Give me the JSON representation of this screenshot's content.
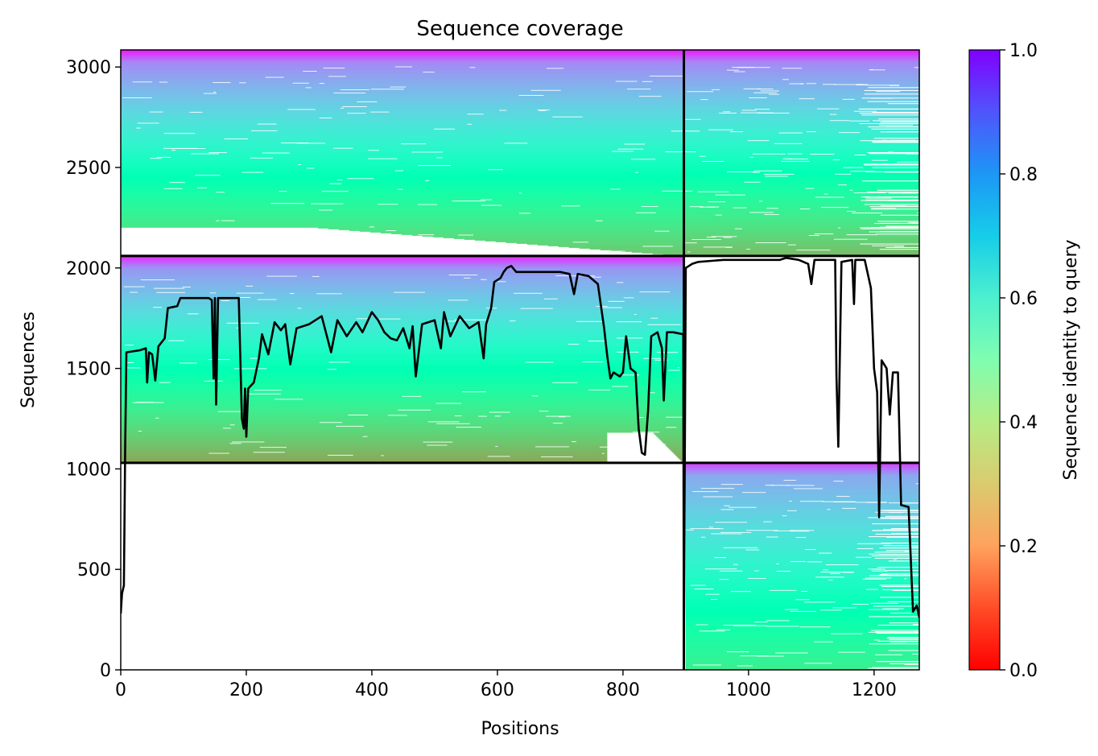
{
  "chart_data": {
    "type": "heatmap",
    "title": "Sequence coverage",
    "xlabel": "Positions",
    "ylabel": "Sequences",
    "colorbar_label": "Sequence identity to query",
    "colormap": "rainbow",
    "xlim": [
      0,
      1272
    ],
    "ylim": [
      0,
      3085
    ],
    "clim": [
      0,
      1
    ],
    "x_ticks": [
      0,
      200,
      400,
      600,
      800,
      1000,
      1200
    ],
    "y_ticks": [
      0,
      500,
      1000,
      1500,
      2000,
      2500,
      3000
    ],
    "colorbar_ticks": [
      0.0,
      0.2,
      0.4,
      0.6,
      0.8,
      1.0
    ],
    "colorbar_tick_labels": [
      "0.0",
      "0.2",
      "0.4",
      "0.6",
      "0.8",
      "1.0"
    ],
    "divider_x": [
      897
    ],
    "divider_y": [
      1030,
      2060
    ],
    "blocks": [
      {
        "name": "upper-left",
        "x": [
          0,
          897
        ],
        "y": [
          2060,
          3085
        ],
        "identity_top": 0.97,
        "identity_bottom": 0.28
      },
      {
        "name": "upper-right",
        "x": [
          897,
          1272
        ],
        "y": [
          2060,
          3085
        ],
        "identity_top": 0.97,
        "identity_bottom": 0.26
      },
      {
        "name": "middle-left",
        "x": [
          0,
          897
        ],
        "y": [
          1030,
          2060
        ],
        "identity_top": 0.95,
        "identity_bottom": 0.22
      },
      {
        "name": "lower-right",
        "x": [
          900,
          1272
        ],
        "y": [
          0,
          1030
        ],
        "identity_top": 0.92,
        "identity_bottom": 0.38
      }
    ],
    "coverage_line": {
      "color": "#000000",
      "points": [
        [
          0,
          280
        ],
        [
          2,
          380
        ],
        [
          5,
          420
        ],
        [
          7,
          1100
        ],
        [
          9,
          1580
        ],
        [
          30,
          1590
        ],
        [
          40,
          1600
        ],
        [
          42,
          1430
        ],
        [
          45,
          1580
        ],
        [
          50,
          1570
        ],
        [
          55,
          1440
        ],
        [
          60,
          1610
        ],
        [
          70,
          1650
        ],
        [
          75,
          1800
        ],
        [
          90,
          1810
        ],
        [
          95,
          1850
        ],
        [
          140,
          1850
        ],
        [
          145,
          1840
        ],
        [
          148,
          1450
        ],
        [
          150,
          1850
        ],
        [
          152,
          1320
        ],
        [
          155,
          1850
        ],
        [
          188,
          1850
        ],
        [
          193,
          1250
        ],
        [
          196,
          1200
        ],
        [
          198,
          1400
        ],
        [
          200,
          1160
        ],
        [
          203,
          1400
        ],
        [
          212,
          1430
        ],
        [
          220,
          1550
        ],
        [
          225,
          1670
        ],
        [
          235,
          1570
        ],
        [
          245,
          1730
        ],
        [
          255,
          1690
        ],
        [
          262,
          1720
        ],
        [
          270,
          1520
        ],
        [
          280,
          1700
        ],
        [
          300,
          1720
        ],
        [
          320,
          1760
        ],
        [
          335,
          1580
        ],
        [
          345,
          1740
        ],
        [
          360,
          1660
        ],
        [
          375,
          1730
        ],
        [
          385,
          1680
        ],
        [
          400,
          1780
        ],
        [
          410,
          1740
        ],
        [
          420,
          1680
        ],
        [
          430,
          1650
        ],
        [
          440,
          1640
        ],
        [
          450,
          1700
        ],
        [
          460,
          1600
        ],
        [
          465,
          1710
        ],
        [
          470,
          1460
        ],
        [
          480,
          1720
        ],
        [
          500,
          1740
        ],
        [
          510,
          1600
        ],
        [
          515,
          1780
        ],
        [
          525,
          1660
        ],
        [
          540,
          1760
        ],
        [
          555,
          1700
        ],
        [
          570,
          1730
        ],
        [
          578,
          1550
        ],
        [
          582,
          1720
        ],
        [
          590,
          1800
        ],
        [
          595,
          1930
        ],
        [
          605,
          1950
        ],
        [
          610,
          1980
        ],
        [
          615,
          2000
        ],
        [
          622,
          2010
        ],
        [
          630,
          1980
        ],
        [
          700,
          1980
        ],
        [
          715,
          1970
        ],
        [
          722,
          1870
        ],
        [
          728,
          1970
        ],
        [
          745,
          1960
        ],
        [
          760,
          1920
        ],
        [
          770,
          1700
        ],
        [
          775,
          1560
        ],
        [
          780,
          1450
        ],
        [
          785,
          1480
        ],
        [
          795,
          1460
        ],
        [
          800,
          1480
        ],
        [
          805,
          1660
        ],
        [
          812,
          1500
        ],
        [
          820,
          1480
        ],
        [
          825,
          1200
        ],
        [
          830,
          1080
        ],
        [
          835,
          1070
        ],
        [
          840,
          1290
        ],
        [
          845,
          1660
        ],
        [
          855,
          1680
        ],
        [
          862,
          1600
        ],
        [
          865,
          1340
        ],
        [
          870,
          1680
        ],
        [
          880,
          1680
        ],
        [
          896,
          1670
        ],
        [
          897,
          80
        ],
        [
          900,
          2000
        ],
        [
          910,
          2020
        ],
        [
          920,
          2030
        ],
        [
          960,
          2040
        ],
        [
          1050,
          2040
        ],
        [
          1060,
          2050
        ],
        [
          1080,
          2040
        ],
        [
          1095,
          2020
        ],
        [
          1100,
          1920
        ],
        [
          1105,
          2040
        ],
        [
          1138,
          2040
        ],
        [
          1140,
          1460
        ],
        [
          1143,
          1110
        ],
        [
          1148,
          2030
        ],
        [
          1165,
          2040
        ],
        [
          1168,
          1820
        ],
        [
          1170,
          2040
        ],
        [
          1185,
          2040
        ],
        [
          1195,
          1900
        ],
        [
          1200,
          1500
        ],
        [
          1205,
          1380
        ],
        [
          1208,
          760
        ],
        [
          1212,
          1540
        ],
        [
          1220,
          1500
        ],
        [
          1225,
          1270
        ],
        [
          1230,
          1480
        ],
        [
          1238,
          1480
        ],
        [
          1243,
          820
        ],
        [
          1255,
          810
        ],
        [
          1262,
          290
        ],
        [
          1268,
          320
        ],
        [
          1272,
          260
        ]
      ]
    }
  }
}
